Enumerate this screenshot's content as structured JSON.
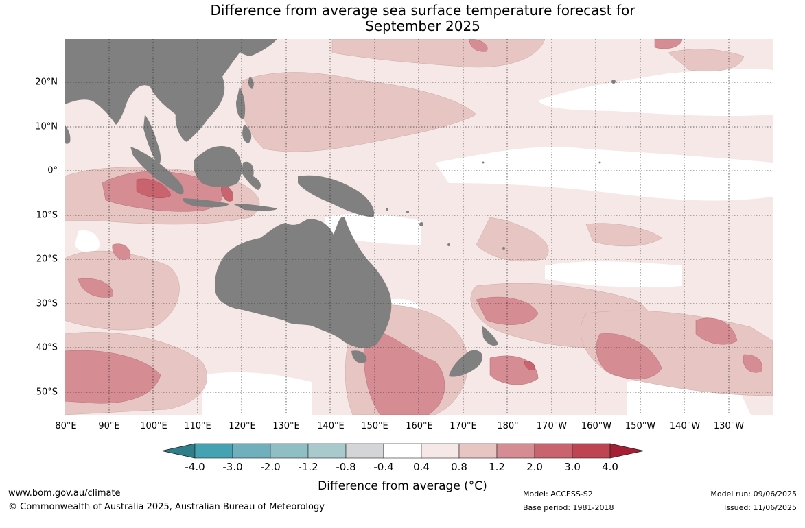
{
  "title": {
    "line1": "Difference from average sea surface temperature forecast for",
    "line2": "September 2025"
  },
  "map": {
    "land_color": "#808080",
    "ocean_color": "#ffffff",
    "lat_labels": [
      "20°N",
      "10°N",
      "0°",
      "10°S",
      "20°S",
      "30°S",
      "40°S",
      "50°S"
    ],
    "lon_labels": [
      "80°E",
      "90°E",
      "100°E",
      "110°E",
      "120°E",
      "130°E",
      "140°E",
      "150°E",
      "160°E",
      "170°E",
      "180°",
      "170°W",
      "160°W",
      "150°W",
      "140°W",
      "130°W"
    ]
  },
  "colorbar": {
    "title": "Difference from average (°C)",
    "ticks": [
      "-4.0",
      "-3.0",
      "-2.0",
      "-1.2",
      "-0.8",
      "-0.4",
      "0.4",
      "0.8",
      "1.2",
      "2.0",
      "3.0",
      "4.0"
    ],
    "colors": {
      "below_min": "#2e7f8a",
      "bins": [
        "#45a2b2",
        "#6fb0bc",
        "#8fbec4",
        "#a9cacc",
        "#d3d5d6",
        "#ffffff",
        "#f5e8e6",
        "#e6c5c2",
        "#d68c93",
        "#c9646e",
        "#bd4450"
      ],
      "above_max": "#a61e34"
    }
  },
  "footer": {
    "url": "www.bom.gov.au/climate",
    "copyright": "© Commonwealth of Australia 2025, Australian Bureau of Meteorology",
    "model": "Model: ACCESS-S2",
    "base_period": "Base period: 1981-2018",
    "model_run": "Model run: 09/06/2025",
    "issued": "Issued: 11/06/2025"
  }
}
